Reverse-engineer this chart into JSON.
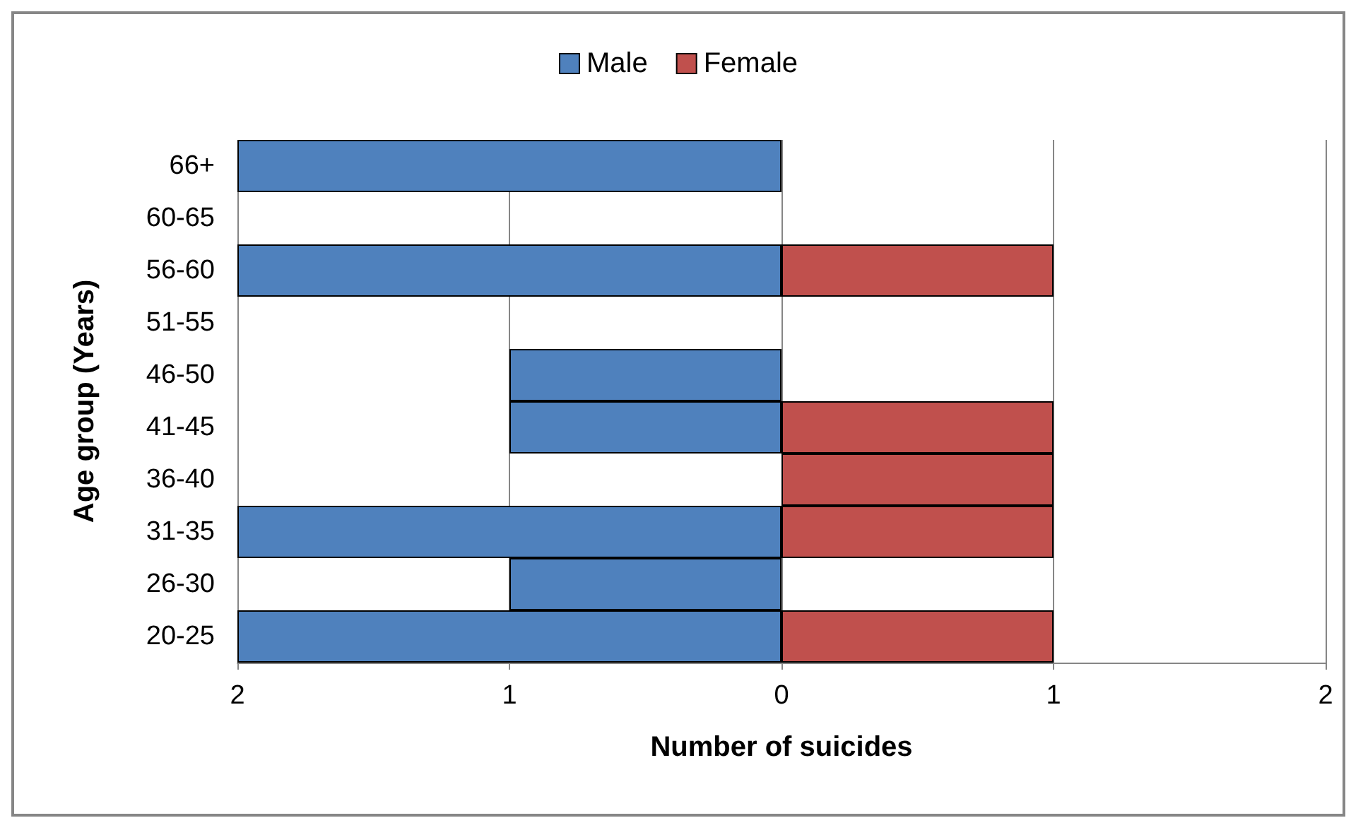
{
  "chart_data": {
    "type": "bar",
    "orientation": "horizontal",
    "stacked": true,
    "xlabel": "Number of suicides",
    "ylabel": "Age group (Years)",
    "categories": [
      "66+",
      "60-65",
      "56-60",
      "51-55",
      "46-50",
      "41-45",
      "36-40",
      "31-35",
      "26-30",
      "20-25"
    ],
    "series": [
      {
        "name": "Male",
        "color": "#4f81bd",
        "values": [
          -2,
          0,
          -2,
          0,
          -1,
          -1,
          0,
          -2,
          -1,
          -2
        ]
      },
      {
        "name": "Female",
        "color": "#c0504d",
        "values": [
          0,
          0,
          1,
          0,
          0,
          1,
          1,
          1,
          0,
          1
        ]
      }
    ],
    "xlim": [
      -2,
      2
    ],
    "xticks": [
      {
        "value": -2,
        "label": "2"
      },
      {
        "value": -1,
        "label": "1"
      },
      0,
      1,
      2
    ],
    "grid": "x",
    "legend": "top"
  }
}
